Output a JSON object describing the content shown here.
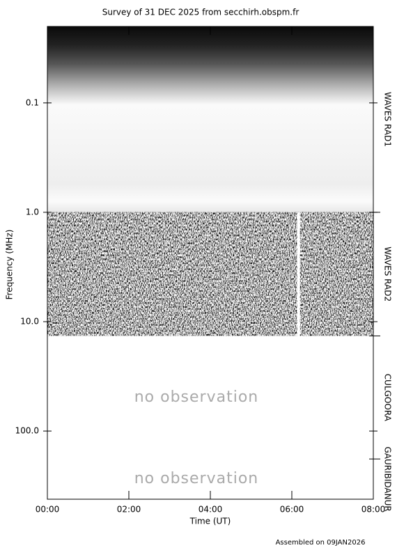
{
  "chart_data": {
    "type": "spectrogram",
    "title": "Survey of 31 DEC 2025 from secchirh.obspm.fr",
    "xlabel": "Time (UT)",
    "ylabel": "Frequency (MHz)",
    "footer": "Assembled on 09JAN2026",
    "xlim": [
      0,
      8
    ],
    "xticks": [
      {
        "value": 0,
        "label": "00:00"
      },
      {
        "value": 2,
        "label": "02:00"
      },
      {
        "value": 4,
        "label": "04:00"
      },
      {
        "value": 6,
        "label": "06:00"
      },
      {
        "value": 8,
        "label": "08:00"
      }
    ],
    "ylim": [
      0.02,
      420
    ],
    "ylog": true,
    "yinverted": true,
    "yticks": [
      0.1,
      {
        "value": 1,
        "label": "1.0"
      },
      {
        "value": 10,
        "label": "10.0"
      },
      {
        "value": 100,
        "label": "100.0"
      }
    ],
    "bands": [
      {
        "name": "WAVES RAD1",
        "fmin": 0.02,
        "fmax": 1.0,
        "texture": "gradient"
      },
      {
        "name": "WAVES RAD2",
        "fmin": 1.0,
        "fmax": 13.5,
        "texture": "noise",
        "gaps": [
          [
            6.13,
            6.2
          ]
        ]
      },
      {
        "name": "CULGOORA",
        "fmin": 13.5,
        "fmax": 180,
        "note": "no observation"
      },
      {
        "name": "GAURIBIDANUR",
        "fmin": 180,
        "fmax": 420,
        "note": "no observation"
      }
    ]
  }
}
